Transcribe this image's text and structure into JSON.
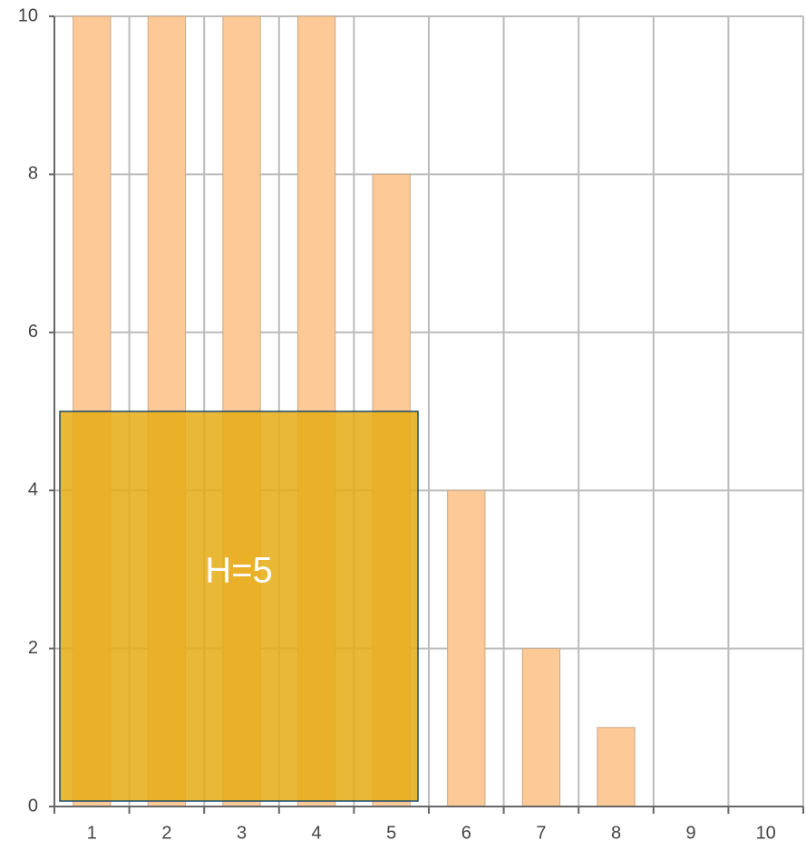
{
  "chart_data": {
    "type": "bar",
    "categories": [
      "1",
      "2",
      "3",
      "4",
      "5",
      "6",
      "7",
      "8",
      "9",
      "10"
    ],
    "values": [
      10,
      10,
      10,
      10,
      8,
      4,
      2,
      1,
      0,
      0
    ],
    "color": "#fdc997",
    "ylim": [
      0,
      10
    ],
    "yticks": [
      0,
      2,
      4,
      6,
      8,
      10
    ],
    "grid": true,
    "annotation": {
      "text": "H=5",
      "value": 5,
      "color": "#e6ac14"
    }
  }
}
